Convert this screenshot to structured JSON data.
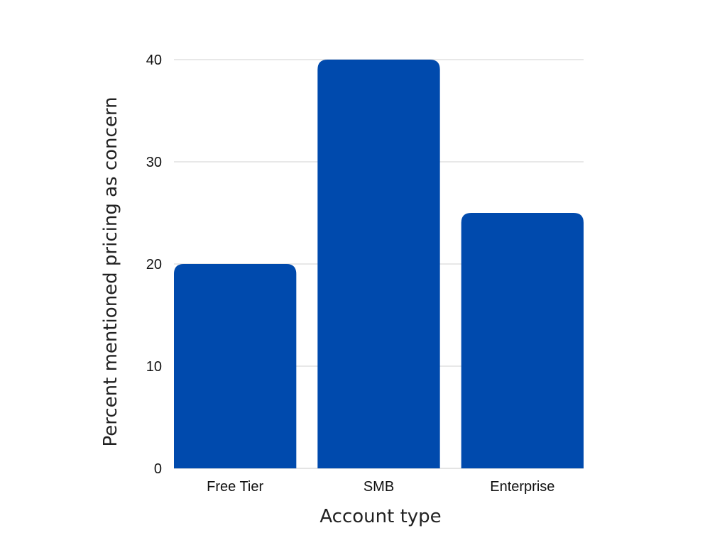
{
  "chart_data": {
    "type": "bar",
    "title": "",
    "xlabel": "Account type",
    "ylabel": "Percent mentioned pricing as concern",
    "categories": [
      "Free Tier",
      "SMB",
      "Enterprise"
    ],
    "values": [
      20,
      40,
      25
    ],
    "ylim": [
      0,
      40
    ],
    "yticks": [
      "0",
      "10",
      "20",
      "30",
      "40"
    ],
    "grid": true,
    "legend": "none",
    "bar_color": "#004AAD"
  }
}
